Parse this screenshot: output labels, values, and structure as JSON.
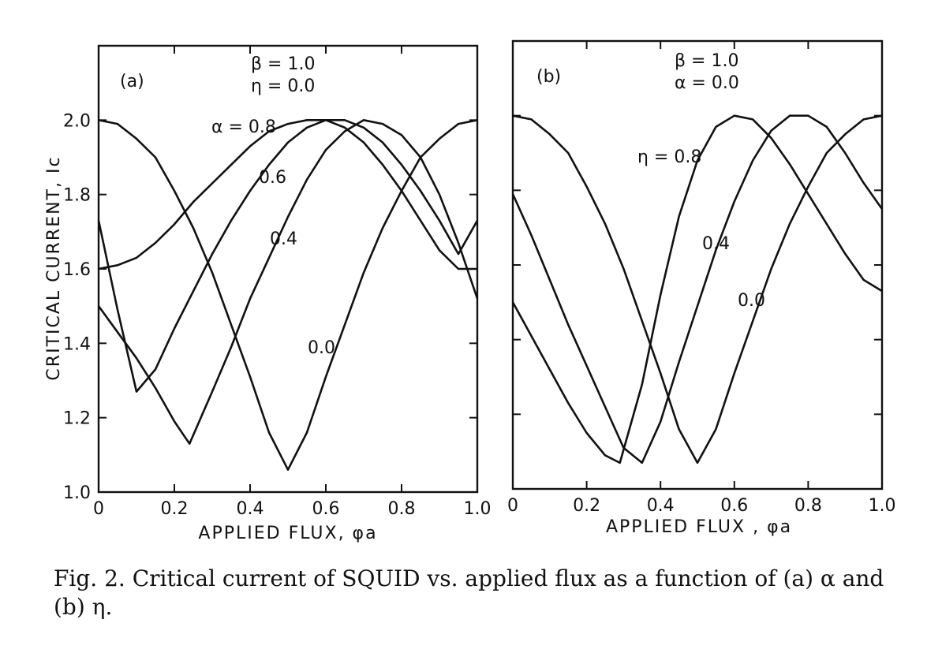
{
  "caption": "Fig. 2. Critical current of SQUID vs. applied flux as a function of (a) α and (b) η.",
  "chart_data": [
    {
      "type": "line",
      "panel_label": "(a)",
      "annotation_lines": [
        "β = 1.0",
        "η = 0.0"
      ],
      "xlabel": "APPLIED FLUX, φa",
      "ylabel": "CRITICAL CURRENT, Ic",
      "xlim": [
        0,
        1.0
      ],
      "ylim": [
        1.0,
        2.2
      ],
      "xticks": [
        0,
        0.2,
        0.4,
        0.6,
        0.8,
        1.0
      ],
      "xtick_labels": [
        "0",
        "0.2",
        "0.4",
        "0.6",
        "0.8",
        "1.0"
      ],
      "yticks": [
        1.0,
        1.2,
        1.4,
        1.6,
        1.8,
        2.0
      ],
      "ytick_labels": [
        "1.0",
        "1.2",
        "1.4",
        "1.6",
        "1.8",
        "2.0"
      ],
      "grid": false,
      "series": [
        {
          "name": "0.0",
          "x": [
            0,
            0.05,
            0.1,
            0.15,
            0.2,
            0.25,
            0.3,
            0.35,
            0.4,
            0.45,
            0.5,
            0.55,
            0.6,
            0.65,
            0.7,
            0.75,
            0.8,
            0.85,
            0.9,
            0.95,
            1.0
          ],
          "y": [
            2.0,
            1.99,
            1.95,
            1.9,
            1.81,
            1.71,
            1.59,
            1.45,
            1.31,
            1.16,
            1.06,
            1.16,
            1.31,
            1.45,
            1.59,
            1.71,
            1.81,
            1.9,
            1.95,
            1.99,
            2.0
          ]
        },
        {
          "name": "0.4",
          "x": [
            0,
            0.05,
            0.1,
            0.15,
            0.2,
            0.24,
            0.3,
            0.35,
            0.4,
            0.45,
            0.5,
            0.55,
            0.6,
            0.65,
            0.7,
            0.75,
            0.8,
            0.85,
            0.9,
            0.95,
            1.0
          ],
          "y": [
            1.5,
            1.43,
            1.36,
            1.28,
            1.19,
            1.13,
            1.27,
            1.39,
            1.52,
            1.63,
            1.74,
            1.84,
            1.92,
            1.97,
            2.0,
            1.99,
            1.96,
            1.9,
            1.8,
            1.67,
            1.52
          ]
        },
        {
          "name": "0.6",
          "x": [
            0,
            0.05,
            0.1,
            0.15,
            0.2,
            0.25,
            0.3,
            0.35,
            0.4,
            0.45,
            0.5,
            0.55,
            0.6,
            0.65,
            0.7,
            0.75,
            0.8,
            0.85,
            0.9,
            0.95,
            1.0
          ],
          "y": [
            1.73,
            1.49,
            1.27,
            1.33,
            1.44,
            1.54,
            1.64,
            1.73,
            1.81,
            1.88,
            1.94,
            1.98,
            2.0,
            2.0,
            1.98,
            1.94,
            1.88,
            1.81,
            1.73,
            1.64,
            1.73
          ]
        },
        {
          "name": "α = 0.8",
          "x": [
            0,
            0.05,
            0.1,
            0.15,
            0.2,
            0.25,
            0.3,
            0.35,
            0.4,
            0.45,
            0.5,
            0.55,
            0.6,
            0.65,
            0.7,
            0.75,
            0.8,
            0.85,
            0.9,
            0.95,
            1.0
          ],
          "y": [
            1.6,
            1.61,
            1.63,
            1.67,
            1.72,
            1.78,
            1.83,
            1.88,
            1.93,
            1.97,
            1.99,
            2.0,
            2.0,
            1.98,
            1.94,
            1.88,
            1.81,
            1.73,
            1.65,
            1.6,
            1.6
          ]
        }
      ]
    },
    {
      "type": "line",
      "panel_label": "(b)",
      "annotation_lines": [
        "β = 1.0",
        "α = 0.0"
      ],
      "xlabel": "APPLIED FLUX , φa",
      "ylabel": "",
      "xlim": [
        0,
        1.0
      ],
      "ylim": [
        1.0,
        2.2
      ],
      "xticks": [
        0,
        0.2,
        0.4,
        0.6,
        0.8,
        1.0
      ],
      "xtick_labels": [
        "0",
        "0.2",
        "0.4",
        "0.6",
        "0.8",
        "1.0"
      ],
      "yticks": [
        1.2,
        1.4,
        1.6,
        1.8,
        2.0
      ],
      "ytick_labels": [],
      "grid": false,
      "series": [
        {
          "name": "0.0",
          "x": [
            0,
            0.05,
            0.1,
            0.15,
            0.2,
            0.25,
            0.3,
            0.35,
            0.4,
            0.45,
            0.5,
            0.55,
            0.6,
            0.65,
            0.7,
            0.75,
            0.8,
            0.85,
            0.9,
            0.95,
            1.0
          ],
          "y": [
            2.0,
            1.99,
            1.95,
            1.9,
            1.81,
            1.71,
            1.59,
            1.45,
            1.31,
            1.16,
            1.07,
            1.16,
            1.31,
            1.45,
            1.59,
            1.71,
            1.81,
            1.9,
            1.95,
            1.99,
            2.0
          ]
        },
        {
          "name": "0.4",
          "x": [
            0,
            0.05,
            0.1,
            0.15,
            0.2,
            0.25,
            0.3,
            0.35,
            0.4,
            0.45,
            0.5,
            0.55,
            0.6,
            0.65,
            0.7,
            0.75,
            0.8,
            0.85,
            0.9,
            0.95,
            1.0
          ],
          "y": [
            1.79,
            1.68,
            1.56,
            1.44,
            1.33,
            1.22,
            1.11,
            1.07,
            1.18,
            1.34,
            1.49,
            1.64,
            1.77,
            1.88,
            1.96,
            2.0,
            2.0,
            1.97,
            1.9,
            1.82,
            1.75
          ]
        },
        {
          "name": "η = 0.8",
          "x": [
            0,
            0.05,
            0.1,
            0.15,
            0.2,
            0.25,
            0.29,
            0.35,
            0.4,
            0.45,
            0.5,
            0.55,
            0.6,
            0.65,
            0.7,
            0.75,
            0.8,
            0.85,
            0.9,
            0.95,
            1.0
          ],
          "y": [
            1.5,
            1.41,
            1.32,
            1.23,
            1.15,
            1.09,
            1.07,
            1.28,
            1.52,
            1.73,
            1.88,
            1.97,
            2.0,
            1.99,
            1.94,
            1.87,
            1.79,
            1.71,
            1.63,
            1.56,
            1.53
          ]
        }
      ]
    }
  ]
}
